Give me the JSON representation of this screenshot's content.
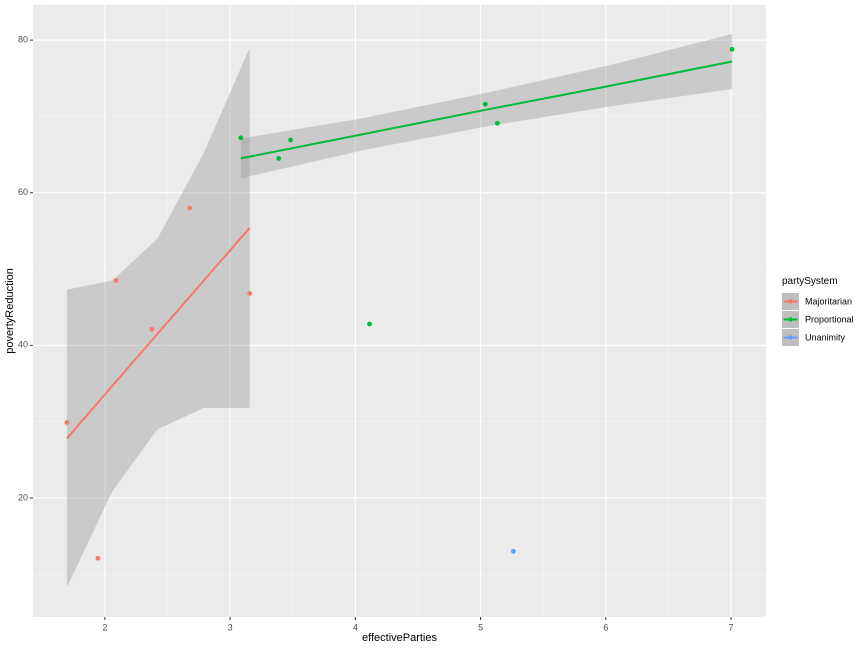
{
  "chart_data": {
    "type": "scatter",
    "x_label": "effectiveParties",
    "y_label": "povertyReduction",
    "legend_title": "partySystem",
    "legend_position": "right",
    "xlim": [
      1.426,
      7.279
    ],
    "ylim": [
      4.4,
      84.6
    ],
    "xticks": [
      2,
      3,
      4,
      5,
      6,
      7
    ],
    "yticks": [
      20,
      40,
      60,
      80
    ],
    "grid": true,
    "series": [
      {
        "name": "Majoritarian",
        "color": "#F8766D",
        "x": [
          1.697,
          1.944,
          2.088,
          2.375,
          2.678,
          3.156
        ],
        "values": [
          29.9,
          12.1,
          48.5,
          42.1,
          58.0,
          46.8
        ],
        "fit": {
          "x": [
            1.697,
            2.06,
            2.42,
            2.79,
            3.156
          ],
          "y": [
            27.8,
            34.7,
            41.5,
            48.5,
            55.4
          ],
          "ymin": [
            8.3,
            20.9,
            29.0,
            31.8,
            31.8
          ],
          "ymax": [
            47.3,
            48.5,
            54.0,
            65.2,
            79.0
          ]
        }
      },
      {
        "name": "Proportional",
        "color": "#00BA38",
        "x": [
          3.085,
          3.388,
          3.483,
          4.113,
          5.038,
          5.134,
          7.008
        ],
        "values": [
          67.2,
          64.5,
          66.9,
          42.8,
          71.6,
          69.1,
          78.8
        ],
        "fit": {
          "x": [
            3.085,
            4.07,
            5.05,
            6.03,
            7.008
          ],
          "y": [
            64.5,
            67.7,
            70.9,
            74.0,
            77.2
          ],
          "ymin": [
            61.9,
            65.6,
            68.7,
            71.3,
            73.6
          ],
          "ymax": [
            67.1,
            69.8,
            73.1,
            76.7,
            80.8
          ]
        }
      },
      {
        "name": "Unanimity",
        "color": "#619CFF",
        "x": [
          5.262
        ],
        "values": [
          13.0
        ]
      }
    ]
  }
}
